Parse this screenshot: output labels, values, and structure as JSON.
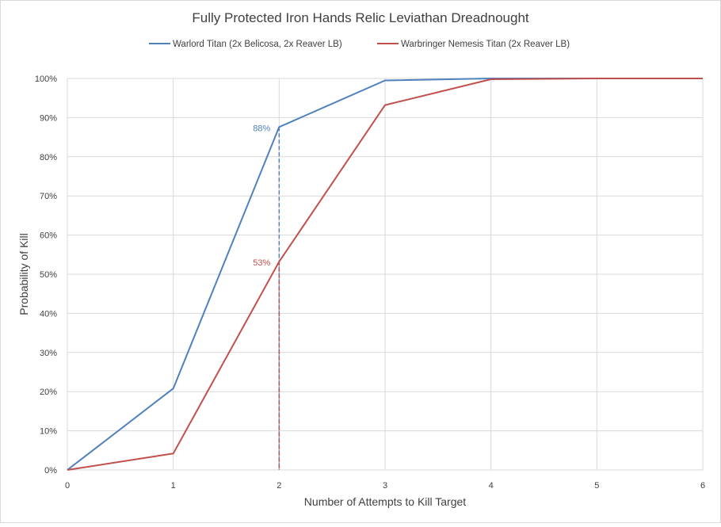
{
  "chart_data": {
    "type": "line",
    "title": "Fully Protected Iron Hands Relic Leviathan Dreadnought",
    "xlabel": "Number of Attempts to Kill Target",
    "ylabel": "Probability of Kill",
    "x": [
      0,
      1,
      2,
      3,
      4,
      5,
      6
    ],
    "xlim": [
      0,
      6
    ],
    "ylim": [
      0,
      100
    ],
    "x_ticks": [
      "0",
      "1",
      "2",
      "3",
      "4",
      "5",
      "6"
    ],
    "y_ticks": [
      "0%",
      "10%",
      "20%",
      "30%",
      "40%",
      "50%",
      "60%",
      "70%",
      "80%",
      "90%",
      "100%"
    ],
    "y_tick_values": [
      0,
      10,
      20,
      30,
      40,
      50,
      60,
      70,
      80,
      90,
      100
    ],
    "grid": true,
    "legend_position": "top",
    "series": [
      {
        "name": "Warlord Titan (2x Belicosa, 2x Reaver LB)",
        "color": "#4f81bd",
        "values": [
          0,
          20.8,
          87.6,
          99.5,
          100,
          100,
          100
        ],
        "annotation": {
          "x": 2,
          "y": 87.6,
          "label": "88%"
        }
      },
      {
        "name": "Warbringer Nemesis Titan (2x Reaver LB)",
        "color": "#c0504d",
        "values": [
          0,
          4.2,
          53.2,
          93.2,
          99.8,
          100,
          100
        ],
        "annotation": {
          "x": 2,
          "y": 53.2,
          "label": "53%"
        }
      }
    ]
  }
}
